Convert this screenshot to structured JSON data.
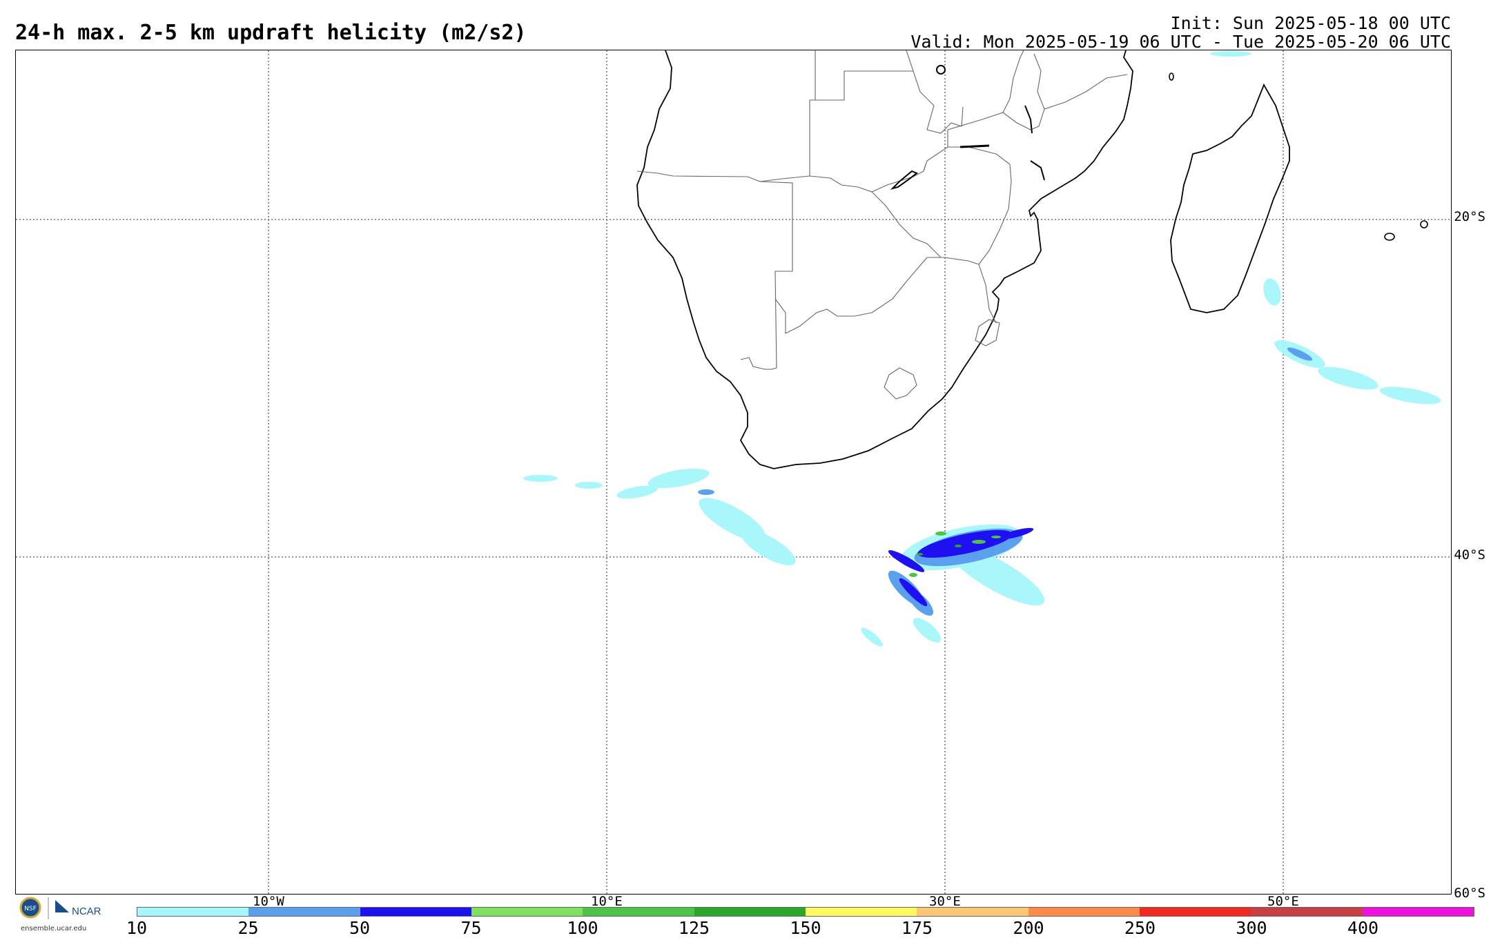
{
  "header": {
    "title": "24-h max. 2-5 km updraft helicity (m2/s2)",
    "init": "Init: Sun 2025-05-18 00 UTC",
    "valid": "Valid: Mon 2025-05-19 06 UTC - Tue 2025-05-20 06 UTC"
  },
  "grid": {
    "lat_labels": [
      "20°S",
      "40°S",
      "60°S"
    ],
    "lon_labels": [
      "10°W",
      "10°E",
      "30°E",
      "50°E"
    ]
  },
  "colorbar": {
    "ticks": [
      "10",
      "25",
      "50",
      "75",
      "100",
      "125",
      "150",
      "175",
      "200",
      "250",
      "300",
      "400"
    ],
    "colors": [
      "#a6f7fb",
      "#5aa0ee",
      "#1e10f0",
      "#80e060",
      "#4cc448",
      "#2aa82a",
      "#fffa60",
      "#ffc870",
      "#ff8a4a",
      "#f02a20",
      "#c84040",
      "#f010e0"
    ]
  },
  "logo": {
    "org": "NCAR",
    "site": "ensemble.ucar.edu"
  }
}
